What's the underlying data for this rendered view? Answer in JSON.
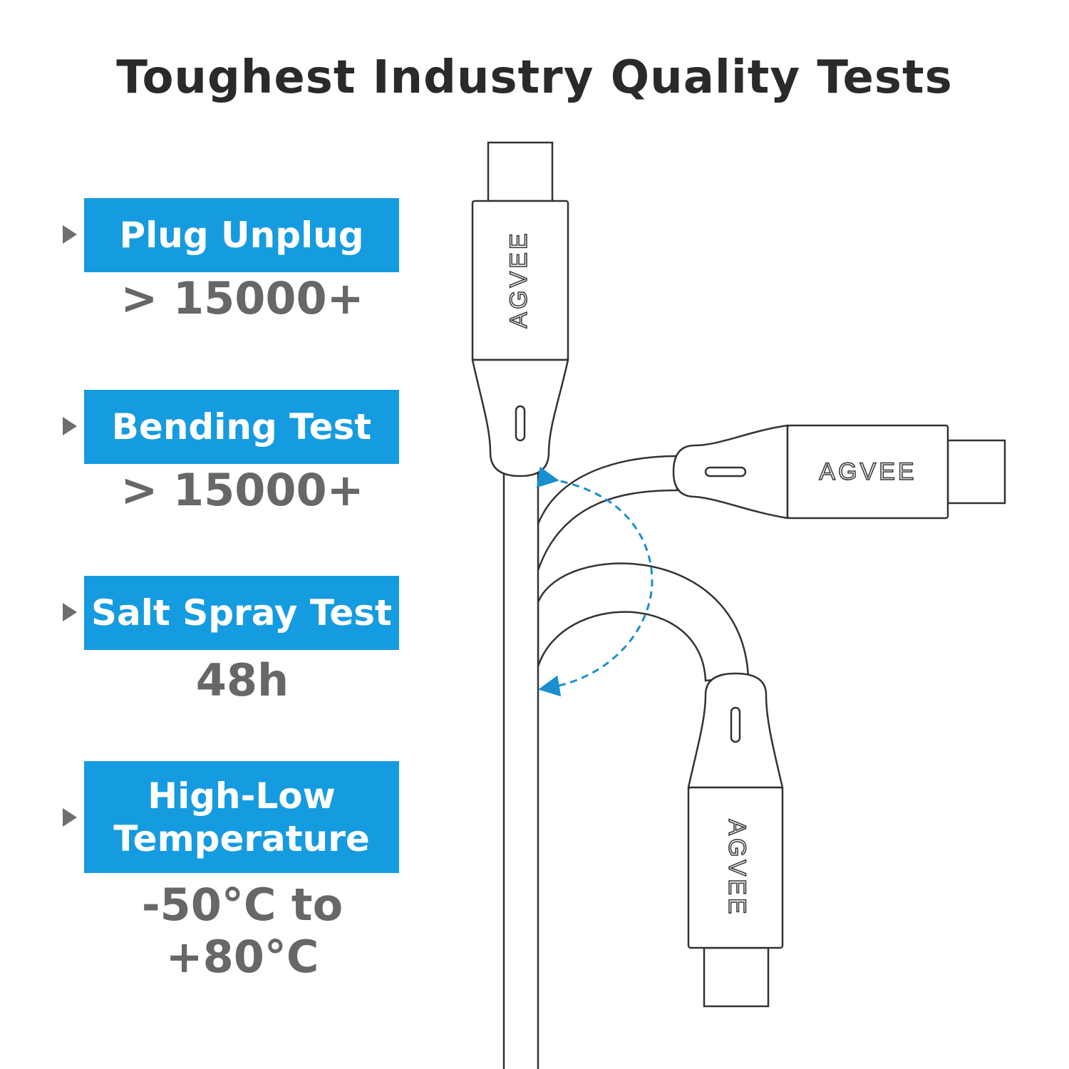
{
  "title": "Toughest Industry Quality Tests",
  "tests": [
    {
      "label": "Plug Unplug",
      "value": "> 15000+"
    },
    {
      "label": "Bending Test",
      "value": "> 15000+"
    },
    {
      "label": "Salt Spray Test",
      "value": "48h"
    },
    {
      "label": "High-Low Temperature",
      "value": "-50°C to +80°C"
    }
  ],
  "brand": "AGVEE",
  "colors": {
    "accent": "#159be0",
    "value_text": "#676767",
    "title_text": "#2a2a2a"
  }
}
